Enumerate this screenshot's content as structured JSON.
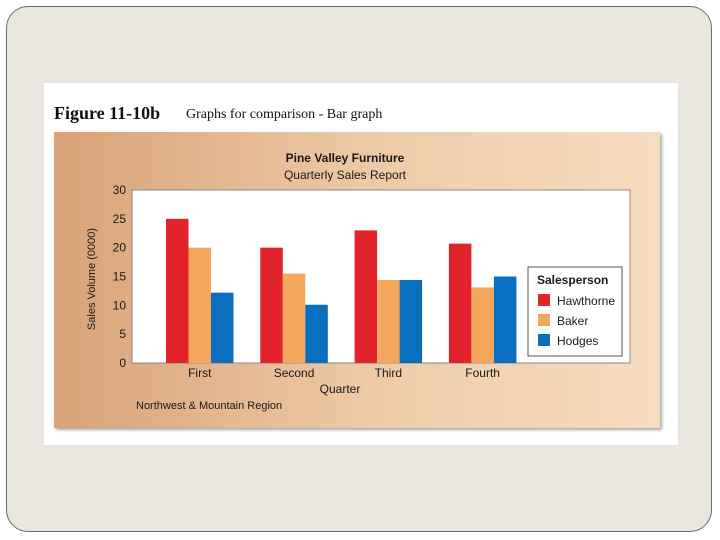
{
  "figure": {
    "label": "Figure 11-10b",
    "caption": "Graphs for comparison - Bar graph"
  },
  "chart_data": {
    "type": "bar",
    "title": "Pine Valley Furniture",
    "subtitle": "Quarterly Sales Report",
    "xlabel": "Quarter",
    "ylabel": "Sales Volume (0000)",
    "ylim": [
      0,
      30
    ],
    "yticks": [
      "0",
      "5",
      "10",
      "15",
      "20",
      "25",
      "30"
    ],
    "categories": [
      "First",
      "Second",
      "Third",
      "Fourth"
    ],
    "series": [
      {
        "name": "Hawthorne",
        "color": "#e3232b",
        "values": [
          25,
          20,
          23,
          20.7
        ]
      },
      {
        "name": "Baker",
        "color": "#f4a75a",
        "values": [
          20,
          15.5,
          14.4,
          13.1
        ]
      },
      {
        "name": "Hodges",
        "color": "#0a6fbe",
        "values": [
          12.2,
          10.1,
          14.4,
          15
        ]
      }
    ],
    "legend": {
      "title": "Salesperson",
      "placement": "right"
    },
    "footnote": "Northwest & Mountain Region",
    "grid": false
  }
}
